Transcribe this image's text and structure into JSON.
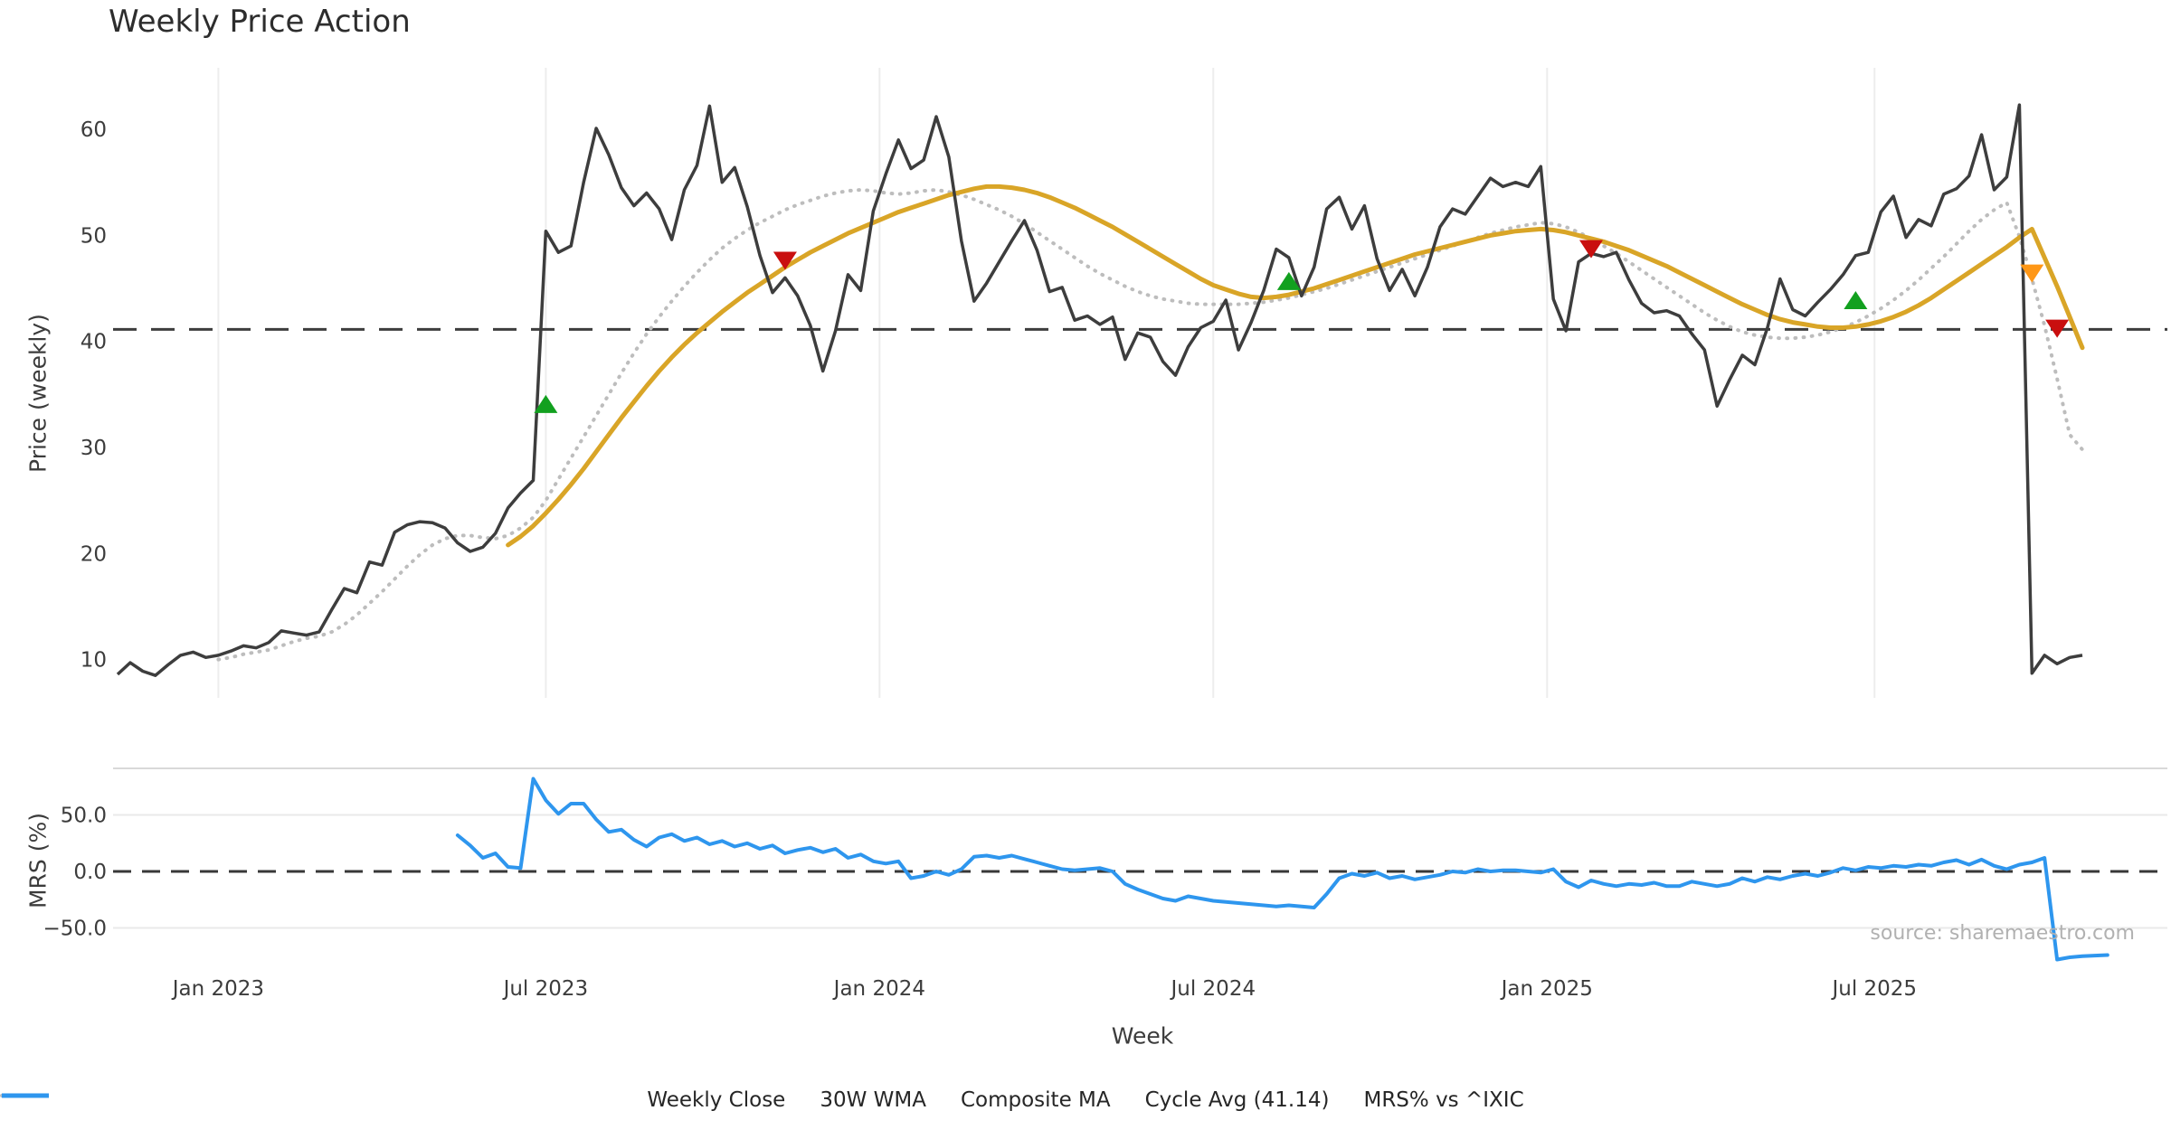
{
  "title": "Weekly Price Action",
  "source": "source: sharemaestro.com",
  "x_axis": {
    "label": "Week",
    "unit": "week_index",
    "ticks": [
      {
        "label": "Jan 2023",
        "i": 8
      },
      {
        "label": "Jul 2023",
        "i": 34
      },
      {
        "label": "Jan 2024",
        "i": 60.5
      },
      {
        "label": "Jul 2024",
        "i": 87
      },
      {
        "label": "Jan 2025",
        "i": 113.5
      },
      {
        "label": "Jul 2025",
        "i": 139.5
      }
    ]
  },
  "legend": {
    "items": [
      {
        "label": "Weekly Close",
        "color": "#3d3d3d",
        "dash": "",
        "width": 5
      },
      {
        "label": "30W WMA",
        "color": "#d9a527",
        "dash": "",
        "width": 5
      },
      {
        "label": "Composite MA",
        "color": "#bdbdbd",
        "dash": "1 8",
        "width": 4,
        "cap": "round"
      },
      {
        "label": "Cycle Avg (41.14)",
        "color": "#3d3d3d",
        "dash": "18 13",
        "width": 3.5
      },
      {
        "label": "MRS% vs ^IXIC",
        "color": "#2e96ee",
        "dash": "",
        "width": 5
      }
    ]
  },
  "chart_data": [
    {
      "type": "line",
      "panel": "price",
      "title": "Weekly Price Action",
      "ylabel": "Price (weekly)",
      "ylim": [
        6.4,
        65.8
      ],
      "yticks": [
        10,
        20,
        30,
        40,
        50,
        60
      ],
      "grid": "vertical-only",
      "cycle_avg": 41.14,
      "series": [
        {
          "name": "Weekly Close",
          "color": "#3d3d3d",
          "style": "solid",
          "start": 0,
          "values": [
            8.6,
            9.7,
            8.9,
            8.5,
            9.5,
            10.4,
            10.7,
            10.2,
            10.4,
            10.8,
            11.3,
            11.1,
            11.6,
            12.7,
            12.5,
            12.3,
            12.6,
            14.7,
            16.7,
            16.3,
            19.2,
            18.9,
            22.0,
            22.7,
            23.0,
            22.9,
            22.4,
            21.0,
            20.2,
            20.6,
            21.9,
            24.3,
            25.7,
            26.9,
            50.4,
            48.4,
            49.0,
            55.0,
            60.1,
            57.6,
            54.5,
            52.8,
            54.0,
            52.5,
            49.6,
            54.3,
            56.6,
            62.2,
            55.0,
            56.4,
            52.7,
            48.1,
            44.6,
            46.0,
            44.3,
            41.5,
            37.2,
            41.0,
            46.3,
            44.8,
            52.3,
            55.8,
            59.0,
            56.3,
            57.1,
            61.2,
            57.4,
            49.5,
            43.8,
            45.5,
            47.5,
            49.5,
            51.4,
            48.6,
            44.7,
            45.1,
            42.0,
            42.4,
            41.6,
            42.3,
            38.3,
            40.8,
            40.4,
            38.1,
            36.8,
            39.5,
            41.3,
            41.9,
            43.9,
            39.2,
            41.8,
            44.8,
            48.7,
            47.9,
            44.3,
            47.0,
            52.5,
            53.6,
            50.6,
            52.8,
            47.8,
            44.8,
            46.8,
            44.3,
            47.0,
            50.8,
            52.5,
            52.0,
            53.7,
            55.4,
            54.6,
            55.0,
            54.6,
            56.5,
            44.0,
            41.0,
            47.5,
            48.3,
            48.0,
            48.4,
            45.8,
            43.6,
            42.7,
            42.9,
            42.4,
            40.7,
            39.2,
            33.9,
            36.4,
            38.7,
            37.8,
            41.3,
            45.9,
            43.0,
            42.4,
            43.7,
            44.9,
            46.3,
            48.1,
            48.4,
            52.2,
            53.7,
            49.8,
            51.5,
            50.9,
            53.9,
            54.4,
            55.6,
            59.5,
            54.3,
            55.5,
            62.3,
            8.7,
            10.4,
            9.6,
            10.2,
            10.4
          ]
        },
        {
          "name": "30W WMA",
          "color": "#d9a527",
          "style": "solid",
          "start": 31,
          "values": [
            20.8,
            21.6,
            22.6,
            23.8,
            25.1,
            26.5,
            28.0,
            29.6,
            31.2,
            32.8,
            34.3,
            35.8,
            37.2,
            38.5,
            39.7,
            40.8,
            41.8,
            42.8,
            43.7,
            44.6,
            45.4,
            46.2,
            47.0,
            47.7,
            48.4,
            49.0,
            49.6,
            50.2,
            50.7,
            51.2,
            51.7,
            52.2,
            52.6,
            53.0,
            53.4,
            53.8,
            54.1,
            54.4,
            54.6,
            54.6,
            54.5,
            54.3,
            54.0,
            53.6,
            53.1,
            52.6,
            52.0,
            51.4,
            50.8,
            50.1,
            49.4,
            48.7,
            48.0,
            47.3,
            46.6,
            45.9,
            45.3,
            44.9,
            44.5,
            44.2,
            44.1,
            44.2,
            44.4,
            44.7,
            45.0,
            45.4,
            45.8,
            46.2,
            46.6,
            47.0,
            47.4,
            47.8,
            48.2,
            48.5,
            48.8,
            49.1,
            49.4,
            49.7,
            50.0,
            50.2,
            50.4,
            50.5,
            50.6,
            50.5,
            50.3,
            50.0,
            49.7,
            49.4,
            49.0,
            48.6,
            48.1,
            47.6,
            47.1,
            46.5,
            45.9,
            45.3,
            44.7,
            44.1,
            43.5,
            43.0,
            42.5,
            42.1,
            41.8,
            41.6,
            41.4,
            41.3,
            41.3,
            41.4,
            41.6,
            41.9,
            42.3,
            42.8,
            43.4,
            44.1,
            44.9,
            45.7,
            46.5,
            47.3,
            48.1,
            48.9,
            49.8,
            50.6,
            47.9,
            45.2,
            42.3,
            39.4
          ]
        },
        {
          "name": "Composite MA",
          "color": "#bdbdbd",
          "style": "dotted",
          "start": 8,
          "values": [
            10.0,
            10.2,
            10.5,
            10.7,
            10.9,
            11.3,
            11.7,
            12.0,
            12.2,
            12.6,
            13.3,
            14.2,
            15.3,
            16.4,
            17.6,
            18.8,
            19.9,
            20.8,
            21.4,
            21.7,
            21.7,
            21.5,
            21.4,
            21.7,
            22.4,
            23.4,
            25.0,
            27.0,
            29.0,
            31.0,
            33.0,
            35.0,
            37.0,
            38.9,
            40.7,
            42.3,
            43.8,
            45.2,
            46.5,
            47.7,
            48.8,
            49.7,
            50.5,
            51.2,
            51.8,
            52.4,
            52.9,
            53.3,
            53.7,
            54.0,
            54.2,
            54.3,
            54.2,
            54.0,
            53.9,
            54.0,
            54.2,
            54.3,
            54.1,
            53.8,
            53.4,
            52.9,
            52.4,
            51.8,
            51.1,
            50.3,
            49.5,
            48.7,
            47.9,
            47.1,
            46.4,
            45.8,
            45.2,
            44.7,
            44.3,
            44.0,
            43.8,
            43.6,
            43.5,
            43.5,
            43.5,
            43.5,
            43.6,
            43.7,
            43.9,
            44.1,
            44.4,
            44.7,
            45.0,
            45.4,
            45.8,
            46.2,
            46.6,
            47.0,
            47.4,
            47.8,
            48.2,
            48.6,
            49.0,
            49.4,
            49.8,
            50.2,
            50.5,
            50.8,
            51.0,
            51.2,
            51.1,
            50.8,
            50.3,
            49.7,
            49.0,
            48.3,
            47.5,
            46.7,
            45.9,
            45.1,
            44.3,
            43.5,
            42.7,
            42.0,
            41.4,
            40.9,
            40.6,
            40.4,
            40.3,
            40.3,
            40.4,
            40.6,
            40.9,
            41.3,
            41.8,
            42.4,
            43.1,
            43.9,
            44.8,
            45.8,
            46.9,
            48.0,
            49.2,
            50.4,
            51.5,
            52.4,
            53.1,
            49.9,
            45.9,
            41.5,
            36.5,
            31.2,
            29.8
          ]
        }
      ],
      "markers": {
        "buy": {
          "shape": "triangle-up",
          "color": "#12a01f",
          "points": [
            {
              "i": 34,
              "price": 34.1
            },
            {
              "i": 93,
              "price": 45.7
            },
            {
              "i": 138,
              "price": 43.9
            }
          ]
        },
        "sell": {
          "shape": "triangle-down",
          "color": "#c90f0f",
          "points": [
            {
              "i": 53,
              "price": 47.6
            },
            {
              "i": 117,
              "price": 48.7
            },
            {
              "i": 154,
              "price": 41.2
            }
          ]
        },
        "warn": {
          "shape": "triangle-down",
          "color": "#ff9716",
          "points": [
            {
              "i": 152,
              "price": 46.4
            }
          ]
        }
      }
    },
    {
      "type": "line",
      "panel": "relative-strength",
      "ylabel": "MRS (%)",
      "ylim": [
        -79,
        91
      ],
      "yticks": [
        {
          "label": "50.0",
          "v": 50
        },
        {
          "label": "0.0",
          "v": 0
        },
        {
          "label": "−50.0",
          "v": -50
        }
      ],
      "zero_line": 0,
      "hgrid": [
        50,
        -50
      ],
      "series": [
        {
          "name": "MRS% vs ^IXIC",
          "color": "#2e96ee",
          "style": "solid",
          "start": 27,
          "values": [
            32,
            23,
            12,
            16,
            4,
            3,
            82,
            63,
            51,
            60,
            60,
            46,
            35,
            37,
            28,
            22,
            30,
            33,
            27,
            30,
            24,
            27,
            22,
            25,
            20,
            23,
            16,
            19,
            21,
            17,
            20,
            12,
            15,
            9,
            7,
            9,
            -6,
            -4,
            0,
            -3,
            2,
            13,
            14,
            12,
            14,
            11,
            8,
            5,
            2,
            1,
            2,
            3,
            0,
            -11,
            -16,
            -20,
            -24,
            -26,
            -22,
            -24,
            -26,
            -27,
            -28,
            -29,
            -30,
            -31,
            -30,
            -31,
            -32,
            -20,
            -6,
            -2,
            -4,
            -1,
            -6,
            -4,
            -7,
            -5,
            -3,
            0,
            -1,
            2,
            0,
            1,
            1,
            0,
            -1,
            2,
            -9,
            -14,
            -8,
            -11,
            -13,
            -11,
            -12,
            -10,
            -13,
            -13,
            -9,
            -11,
            -13,
            -11,
            -6,
            -9,
            -5,
            -7,
            -4,
            -2,
            -4,
            -1,
            3,
            1,
            4,
            3,
            5,
            4,
            6,
            5,
            8,
            10,
            6,
            10.5,
            5,
            2,
            6,
            8,
            12,
            -78,
            -76,
            -75,
            -74.5,
            -74
          ]
        }
      ]
    }
  ]
}
